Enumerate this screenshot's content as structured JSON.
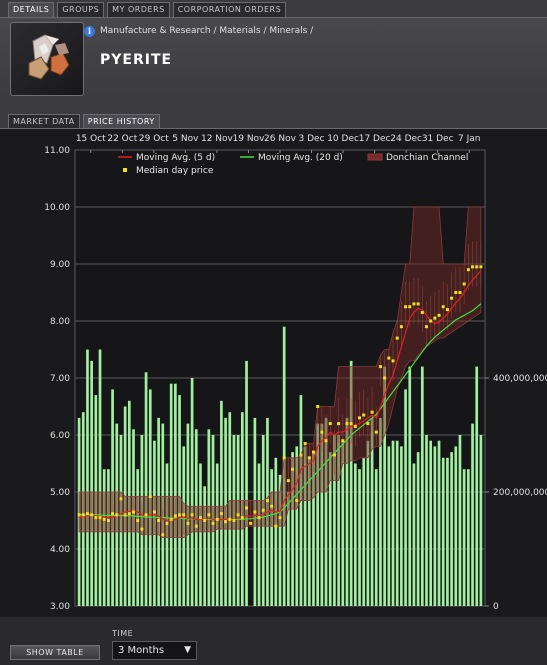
{
  "tabs": [
    {
      "label": "DETAILS",
      "active": true
    },
    {
      "label": "GROUPS",
      "active": false
    },
    {
      "label": "MY ORDERS",
      "active": false
    },
    {
      "label": "CORPORATION ORDERS",
      "active": false
    }
  ],
  "item": {
    "breadcrumb": "Manufacture & Research / Materials / Minerals /",
    "name": "PYERITE",
    "info_icon": "info-icon",
    "item_icon": "mineral-crystal-icon"
  },
  "subtabs": [
    {
      "label": "MARKET DATA",
      "active": false
    },
    {
      "label": "PRICE HISTORY",
      "active": true
    }
  ],
  "controls": {
    "show_table_label": "SHOW TABLE",
    "time_label": "TIME",
    "time_value": "3 Months"
  },
  "colors": {
    "moving_avg_5": "#e02020",
    "moving_avg_20": "#40e040",
    "donchian": "#7a2a2a",
    "median": "#f0e020",
    "volume": "#a0f0a0"
  },
  "chart_data": {
    "type": "line",
    "x_tick_labels": [
      "15 Oct",
      "22 Oct",
      "29 Oct",
      "5 Nov",
      "12 Nov",
      "19 Nov",
      "26 Nov",
      "3 Dec",
      "10 Dec",
      "17 Dec",
      "24 Dec",
      "31 Dec",
      "7 Jan"
    ],
    "y_tick_labels": [
      "3.00",
      "4.00",
      "5.00",
      "6.00",
      "7.00",
      "8.00",
      "9.00",
      "10.00",
      "11.00"
    ],
    "ylim": [
      3.0,
      11.0
    ],
    "volume_tick_labels": [
      "400,000,000",
      "200,000,000",
      "0"
    ],
    "volume_ylim": [
      0,
      800000000
    ],
    "legend": [
      {
        "name": "Moving Avg. (5 d)",
        "kind": "line",
        "color": "#e02020"
      },
      {
        "name": "Moving Avg. (20 d)",
        "kind": "line",
        "color": "#40e040"
      },
      {
        "name": "Donchian Channel",
        "kind": "band",
        "color": "#7a2a2a"
      },
      {
        "name": "Median day price",
        "kind": "point",
        "color": "#f0e020"
      }
    ],
    "median": [
      4.6,
      4.6,
      4.62,
      4.6,
      4.55,
      4.55,
      4.52,
      4.5,
      4.62,
      4.6,
      4.88,
      4.6,
      4.62,
      4.65,
      4.5,
      4.35,
      4.6,
      4.92,
      4.65,
      4.5,
      4.25,
      4.45,
      4.52,
      4.58,
      4.6,
      4.6,
      4.45,
      4.6,
      4.4,
      4.55,
      4.5,
      4.6,
      4.45,
      4.52,
      4.62,
      4.48,
      4.52,
      4.5,
      4.6,
      4.55,
      4.72,
      4.45,
      4.65,
      4.55,
      4.68,
      4.85,
      4.75,
      4.4,
      4.55,
      5.6,
      5.2,
      5.4,
      4.85,
      5.65,
      5.85,
      5.6,
      5.7,
      6.5,
      6.05,
      5.9,
      6.2,
      5.65,
      6.2,
      5.9,
      6.2,
      6.2,
      6.15,
      6.3,
      6.35,
      6.2,
      6.4,
      6.05,
      7.2,
      7.0,
      7.35,
      7.3,
      7.7,
      7.9,
      8.25,
      8.25,
      8.3,
      8.3,
      8.15,
      7.9,
      8.0,
      8.05,
      8.1,
      8.25,
      8.2,
      8.4,
      8.5,
      8.5,
      8.65,
      8.9,
      8.95,
      8.95,
      8.95
    ],
    "ma5": [
      4.55,
      4.57,
      4.58,
      4.58,
      4.58,
      4.57,
      4.56,
      4.55,
      4.56,
      4.58,
      4.62,
      4.65,
      4.66,
      4.67,
      4.65,
      4.6,
      4.58,
      4.6,
      4.6,
      4.58,
      4.53,
      4.5,
      4.5,
      4.52,
      4.55,
      4.56,
      4.54,
      4.54,
      4.52,
      4.52,
      4.52,
      4.54,
      4.52,
      4.51,
      4.52,
      4.52,
      4.53,
      4.52,
      4.54,
      4.55,
      4.58,
      4.57,
      4.59,
      4.58,
      4.61,
      4.65,
      4.68,
      4.65,
      4.66,
      4.85,
      4.95,
      5.05,
      5.15,
      5.4,
      5.45,
      5.5,
      5.55,
      5.8,
      5.9,
      5.95,
      6.05,
      6.0,
      6.05,
      6.05,
      6.1,
      6.15,
      6.18,
      6.2,
      6.25,
      6.3,
      6.35,
      6.3,
      6.5,
      6.7,
      6.9,
      7.05,
      7.3,
      7.55,
      7.8,
      8.05,
      8.15,
      8.22,
      8.2,
      8.1,
      8.0,
      7.95,
      7.98,
      8.05,
      8.12,
      8.22,
      8.32,
      8.4,
      8.5,
      8.62,
      8.72,
      8.8,
      8.88
    ],
    "ma20": [
      4.6,
      4.6,
      4.6,
      4.6,
      4.6,
      4.6,
      4.59,
      4.59,
      4.59,
      4.59,
      4.59,
      4.58,
      4.58,
      4.58,
      4.57,
      4.57,
      4.56,
      4.56,
      4.56,
      4.55,
      4.55,
      4.55,
      4.54,
      4.54,
      4.54,
      4.53,
      4.53,
      4.53,
      4.52,
      4.52,
      4.52,
      4.52,
      4.52,
      4.52,
      4.52,
      4.52,
      4.52,
      4.52,
      4.52,
      4.52,
      4.53,
      4.53,
      4.54,
      4.55,
      4.56,
      4.58,
      4.6,
      4.62,
      4.65,
      4.72,
      4.8,
      4.88,
      4.96,
      5.04,
      5.12,
      5.2,
      5.28,
      5.36,
      5.44,
      5.52,
      5.6,
      5.68,
      5.76,
      5.84,
      5.92,
      6.0,
      6.06,
      6.12,
      6.18,
      6.24,
      6.3,
      6.36,
      6.46,
      6.56,
      6.66,
      6.76,
      6.86,
      6.96,
      7.06,
      7.16,
      7.26,
      7.36,
      7.46,
      7.56,
      7.64,
      7.72,
      7.78,
      7.84,
      7.9,
      7.96,
      8.02,
      8.06,
      8.1,
      8.14,
      8.18,
      8.24,
      8.3
    ],
    "donchian_upper": [
      5.0,
      5.0,
      5.0,
      5.0,
      5.0,
      5.0,
      5.0,
      5.0,
      5.0,
      5.0,
      5.0,
      4.92,
      4.92,
      4.92,
      4.92,
      4.92,
      4.92,
      4.92,
      4.92,
      4.92,
      4.92,
      4.92,
      4.92,
      4.92,
      4.92,
      4.8,
      4.75,
      4.75,
      4.75,
      4.75,
      4.75,
      4.75,
      4.75,
      4.75,
      4.75,
      4.75,
      4.85,
      4.85,
      4.85,
      4.85,
      4.85,
      4.85,
      4.85,
      4.85,
      4.85,
      4.9,
      5.0,
      5.0,
      5.0,
      5.6,
      5.6,
      5.6,
      5.6,
      5.65,
      5.85,
      5.85,
      5.85,
      6.5,
      6.5,
      6.5,
      6.5,
      6.5,
      7.2,
      7.2,
      7.2,
      7.2,
      7.2,
      7.2,
      7.2,
      7.2,
      7.2,
      7.2,
      7.4,
      7.5,
      7.5,
      7.8,
      8.0,
      8.5,
      9.0,
      9.0,
      10.0,
      10.0,
      10.0,
      10.0,
      10.0,
      10.0,
      10.0,
      9.0,
      9.0,
      9.0,
      9.0,
      9.0,
      9.0,
      10.0,
      10.0,
      10.0,
      10.0
    ],
    "donchian_lower": [
      4.3,
      4.3,
      4.3,
      4.3,
      4.3,
      4.3,
      4.3,
      4.3,
      4.3,
      4.3,
      4.3,
      4.3,
      4.3,
      4.3,
      4.3,
      4.25,
      4.25,
      4.25,
      4.25,
      4.25,
      4.2,
      4.2,
      4.2,
      4.2,
      4.2,
      4.2,
      4.25,
      4.3,
      4.3,
      4.3,
      4.3,
      4.3,
      4.3,
      4.35,
      4.35,
      4.35,
      4.35,
      4.35,
      4.35,
      4.35,
      4.4,
      4.4,
      4.4,
      4.4,
      4.4,
      4.4,
      4.4,
      4.4,
      4.4,
      4.4,
      4.7,
      4.7,
      4.7,
      4.85,
      4.85,
      4.85,
      4.9,
      5.0,
      5.0,
      5.0,
      5.2,
      5.2,
      5.2,
      5.5,
      5.5,
      5.55,
      5.55,
      5.6,
      5.6,
      5.6,
      5.75,
      5.8,
      5.8,
      6.0,
      6.2,
      6.5,
      6.8,
      7.0,
      7.2,
      7.3,
      7.3,
      7.4,
      7.5,
      7.55,
      7.6,
      7.65,
      7.7,
      7.7,
      7.75,
      7.8,
      7.85,
      7.9,
      7.95,
      8.0,
      8.05,
      8.1,
      8.15
    ],
    "volume": [
      330,
      340,
      450,
      430,
      370,
      450,
      240,
      240,
      380,
      320,
      300,
      350,
      360,
      310,
      240,
      300,
      410,
      380,
      290,
      330,
      320,
      250,
      390,
      390,
      370,
      280,
      320,
      400,
      310,
      250,
      210,
      310,
      300,
      250,
      360,
      330,
      340,
      300,
      300,
      340,
      430,
      0,
      330,
      250,
      300,
      330,
      240,
      260,
      230,
      490,
      200,
      270,
      280,
      370,
      280,
      260,
      270,
      320,
      320,
      330,
      270,
      300,
      300,
      290,
      330,
      430,
      250,
      240,
      260,
      290,
      330,
      240,
      330,
      420,
      280,
      290,
      290,
      280,
      380,
      420,
      250,
      270,
      420,
      300,
      290,
      280,
      290,
      260,
      260,
      270,
      280,
      300,
      240,
      240,
      320,
      420,
      300
    ]
  }
}
